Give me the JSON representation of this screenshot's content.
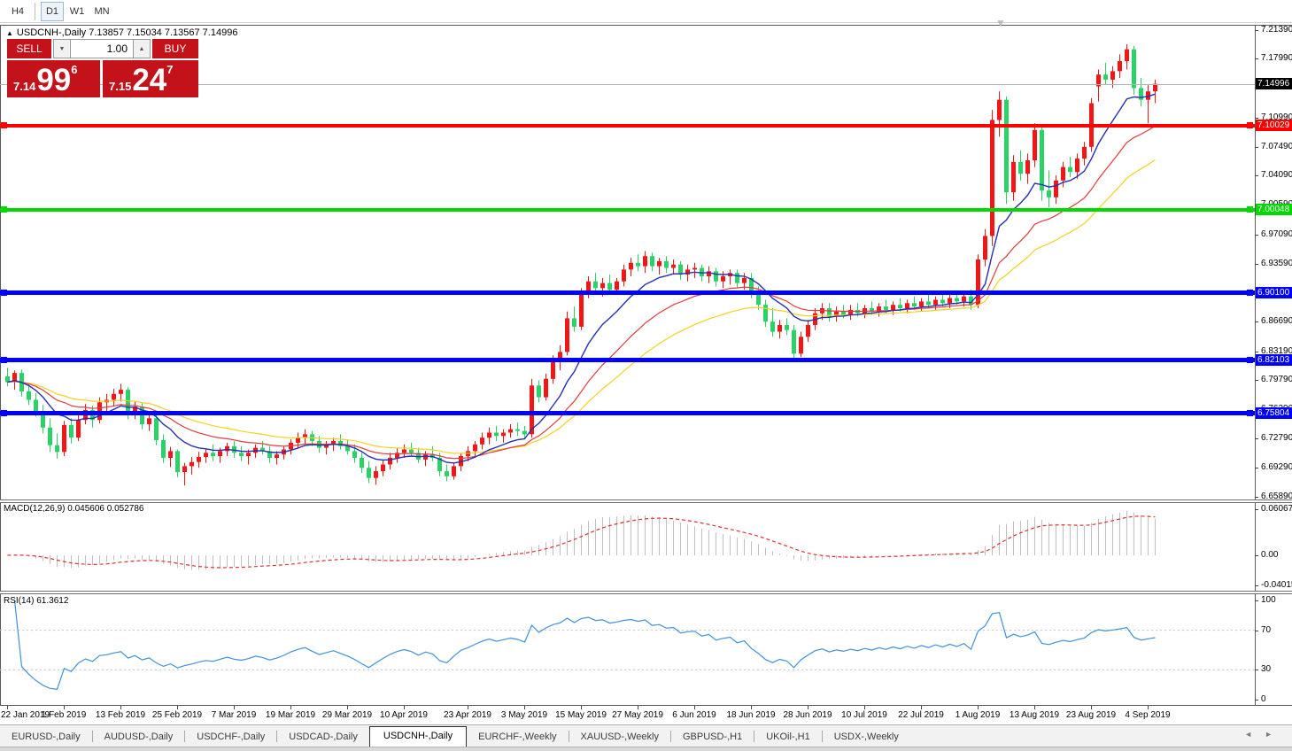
{
  "toolbar": {
    "timeframes": [
      {
        "label": "H4",
        "active": false
      },
      {
        "label": "D1",
        "active": true
      },
      {
        "label": "W1",
        "active": false
      },
      {
        "label": "MN",
        "active": false
      }
    ]
  },
  "chart": {
    "symbol_period": "USDCNH-,Daily",
    "ohlc_text": "7.13857 7.15034 7.13567 7.14996",
    "expand_marker": "▲",
    "scroll_marker": "▼"
  },
  "trade": {
    "sell_label": "SELL",
    "buy_label": "BUY",
    "volume": "1.00",
    "spin_down": "▼",
    "spin_up": "▲",
    "sell_price_small": "7.14",
    "sell_price_big": "99",
    "sell_price_sup": "6",
    "buy_price_small": "7.15",
    "buy_price_big": "24",
    "buy_price_sup": "7"
  },
  "price_axis": {
    "ticks": [
      "7.21390",
      "7.17990",
      "7.14490",
      "7.10990",
      "7.07490",
      "7.04090",
      "7.00590",
      "6.97090",
      "6.93590",
      "6.90090",
      "6.86690",
      "6.83190",
      "6.79790",
      "6.76290",
      "6.72790",
      "6.69290",
      "6.65890"
    ],
    "current_label": "7.14996"
  },
  "macd_panel": {
    "name": "MACD(12,26,9)",
    "v1": "0.045606",
    "v2": "0.052786",
    "axis": [
      {
        "label": "0.060674",
        "v": 0.060674
      },
      {
        "label": "0.00",
        "v": 0.0
      },
      {
        "label": "-0.040152",
        "v": -0.040152
      }
    ]
  },
  "rsi_panel": {
    "name": "RSI(14)",
    "value": "61.3612",
    "axis": [
      {
        "label": "100",
        "v": 100
      },
      {
        "label": "70",
        "v": 70
      },
      {
        "label": "30",
        "v": 30
      },
      {
        "label": "0",
        "v": 0
      }
    ],
    "levels": [
      70,
      30
    ]
  },
  "tabs": [
    {
      "label": "EURUSD-,Daily",
      "active": false
    },
    {
      "label": "AUDUSD-,Daily",
      "active": false
    },
    {
      "label": "USDCHF-,Daily",
      "active": false
    },
    {
      "label": "USDCAD-,Daily",
      "active": false
    },
    {
      "label": "USDCNH-,Daily",
      "active": true
    },
    {
      "label": "EURCHF-,Weekly",
      "active": false
    },
    {
      "label": "XAUUSD-,Weekly",
      "active": false
    },
    {
      "label": "GBPUSD-,H1",
      "active": false
    },
    {
      "label": "UKOil-,H1",
      "active": false
    },
    {
      "label": "USDX-,Weekly",
      "active": false
    }
  ],
  "tab_arrows": {
    "left": "◄",
    "right": "►"
  },
  "colors": {
    "bull": "#f21616",
    "bear": "#29d167",
    "ma_fast": "#2430b4",
    "ma_mid": "#e23a3a",
    "ma_slow": "#f2d21f",
    "level_red": "#ff0000",
    "level_green": "#00d800",
    "level_blue": "#0000ff",
    "current_price_bg": "#000000",
    "macd_bar": "#bfbfbf",
    "macd_signal": "#e03030",
    "rsi_line": "#4090dd",
    "trade_red": "#c31219"
  },
  "chart_data": {
    "type": "candlestick",
    "symbol": "USDCNH-",
    "timeframe": "Daily",
    "current_ohlc": {
      "open": 7.13857,
      "high": 7.15034,
      "low": 7.13567,
      "close": 7.14996
    },
    "y_axis": {
      "min": 6.6589,
      "max": 7.2139
    },
    "x_axis_dates": [
      {
        "index": 0,
        "label": "22 Jan 2019"
      },
      {
        "index": 8,
        "label": "1 Feb 2019"
      },
      {
        "index": 16,
        "label": "13 Feb 2019"
      },
      {
        "index": 24,
        "label": "25 Feb 2019"
      },
      {
        "index": 32,
        "label": "7 Mar 2019"
      },
      {
        "index": 40,
        "label": "19 Mar 2019"
      },
      {
        "index": 48,
        "label": "29 Mar 2019"
      },
      {
        "index": 56,
        "label": "10 Apr 2019"
      },
      {
        "index": 65,
        "label": "23 Apr 2019"
      },
      {
        "index": 73,
        "label": "3 May 2019"
      },
      {
        "index": 81,
        "label": "15 May 2019"
      },
      {
        "index": 89,
        "label": "27 May 2019"
      },
      {
        "index": 97,
        "label": "6 Jun 2019"
      },
      {
        "index": 105,
        "label": "18 Jun 2019"
      },
      {
        "index": 113,
        "label": "28 Jun 2019"
      },
      {
        "index": 121,
        "label": "10 Jul 2019"
      },
      {
        "index": 129,
        "label": "22 Jul 2019"
      },
      {
        "index": 137,
        "label": "1 Aug 2019"
      },
      {
        "index": 145,
        "label": "13 Aug 2019"
      },
      {
        "index": 153,
        "label": "23 Aug 2019"
      },
      {
        "index": 161,
        "label": "4 Sep 2019"
      }
    ],
    "levels": [
      {
        "price": 7.10029,
        "label": "7.10029",
        "color": "#ff0000"
      },
      {
        "price": 7.00048,
        "label": "7.00048",
        "color": "#00d800"
      },
      {
        "price": 6.901,
        "label": "6.90100",
        "color": "#0000ff"
      },
      {
        "price": 6.82103,
        "label": "6.82103",
        "color": "#0000ff"
      },
      {
        "price": 6.75804,
        "label": "6.75804",
        "color": "#0000ff"
      }
    ],
    "current_price": 7.14996,
    "overlays": [
      {
        "name": "ma-fast",
        "type": "ema",
        "period": 10,
        "color": "#2430b4"
      },
      {
        "name": "ma-mid",
        "type": "ema",
        "period": 21,
        "color": "#e23a3a"
      },
      {
        "name": "ma-slow",
        "type": "ema",
        "period": 34,
        "color": "#f2d21f"
      }
    ],
    "indicators": [
      {
        "name": "MACD",
        "params": "12,26,9",
        "values": [
          0.045606,
          0.052786
        ]
      },
      {
        "name": "RSI",
        "params": "14",
        "value": 61.3612,
        "levels": [
          70,
          30
        ]
      }
    ],
    "candles": [
      [
        6.802,
        6.812,
        6.79,
        6.795
      ],
      [
        6.795,
        6.809,
        6.786,
        6.806
      ],
      [
        6.806,
        6.81,
        6.778,
        6.784
      ],
      [
        6.784,
        6.794,
        6.768,
        6.774
      ],
      [
        6.774,
        6.782,
        6.754,
        6.76
      ],
      [
        6.76,
        6.768,
        6.734,
        6.741
      ],
      [
        6.741,
        6.752,
        6.712,
        6.72
      ],
      [
        6.72,
        6.734,
        6.704,
        6.712
      ],
      [
        6.712,
        6.749,
        6.707,
        6.744
      ],
      [
        6.744,
        6.752,
        6.722,
        6.729
      ],
      [
        6.729,
        6.756,
        6.725,
        6.75
      ],
      [
        6.75,
        6.769,
        6.745,
        6.762
      ],
      [
        6.762,
        6.767,
        6.741,
        6.75
      ],
      [
        6.75,
        6.777,
        6.746,
        6.771
      ],
      [
        6.771,
        6.781,
        6.759,
        6.774
      ],
      [
        6.774,
        6.787,
        6.766,
        6.781
      ],
      [
        6.781,
        6.793,
        6.772,
        6.786
      ],
      [
        6.786,
        6.789,
        6.751,
        6.757
      ],
      [
        6.757,
        6.772,
        6.751,
        6.766
      ],
      [
        6.766,
        6.77,
        6.739,
        6.745
      ],
      [
        6.745,
        6.758,
        6.737,
        6.752
      ],
      [
        6.752,
        6.756,
        6.72,
        6.726
      ],
      [
        6.726,
        6.733,
        6.699,
        6.705
      ],
      [
        6.705,
        6.718,
        6.694,
        6.713
      ],
      [
        6.713,
        6.715,
        6.682,
        6.688
      ],
      [
        6.688,
        6.699,
        6.672,
        6.695
      ],
      [
        6.695,
        6.706,
        6.685,
        6.7
      ],
      [
        6.7,
        6.712,
        6.693,
        6.706
      ],
      [
        6.706,
        6.716,
        6.699,
        6.711
      ],
      [
        6.711,
        6.721,
        6.701,
        6.707
      ],
      [
        6.707,
        6.717,
        6.699,
        6.713
      ],
      [
        6.713,
        6.723,
        6.707,
        6.719
      ],
      [
        6.719,
        6.725,
        6.705,
        6.711
      ],
      [
        6.711,
        6.719,
        6.701,
        6.707
      ],
      [
        6.707,
        6.715,
        6.697,
        6.711
      ],
      [
        6.711,
        6.721,
        6.705,
        6.717
      ],
      [
        6.717,
        6.725,
        6.709,
        6.713
      ],
      [
        6.713,
        6.719,
        6.699,
        6.705
      ],
      [
        6.705,
        6.713,
        6.697,
        6.709
      ],
      [
        6.709,
        6.719,
        6.703,
        6.715
      ],
      [
        6.715,
        6.727,
        6.709,
        6.723
      ],
      [
        6.723,
        6.735,
        6.717,
        6.729
      ],
      [
        6.729,
        6.739,
        6.721,
        6.733
      ],
      [
        6.733,
        6.737,
        6.719,
        6.725
      ],
      [
        6.725,
        6.731,
        6.711,
        6.717
      ],
      [
        6.717,
        6.725,
        6.709,
        6.721
      ],
      [
        6.721,
        6.729,
        6.713,
        6.725
      ],
      [
        6.725,
        6.733,
        6.715,
        6.719
      ],
      [
        6.719,
        6.727,
        6.709,
        6.713
      ],
      [
        6.713,
        6.721,
        6.699,
        6.705
      ],
      [
        6.705,
        6.711,
        6.687,
        6.693
      ],
      [
        6.693,
        6.701,
        6.675,
        6.681
      ],
      [
        6.681,
        6.695,
        6.673,
        6.689
      ],
      [
        6.689,
        6.703,
        6.683,
        6.697
      ],
      [
        6.697,
        6.711,
        6.691,
        6.705
      ],
      [
        6.705,
        6.717,
        6.699,
        6.711
      ],
      [
        6.711,
        6.721,
        6.705,
        6.715
      ],
      [
        6.715,
        6.723,
        6.707,
        6.711
      ],
      [
        6.711,
        6.717,
        6.699,
        6.703
      ],
      [
        6.703,
        6.713,
        6.695,
        6.709
      ],
      [
        6.709,
        6.719,
        6.701,
        6.705
      ],
      [
        6.705,
        6.711,
        6.683,
        6.689
      ],
      [
        6.689,
        6.697,
        6.677,
        6.683
      ],
      [
        6.683,
        6.699,
        6.679,
        6.695
      ],
      [
        6.695,
        6.711,
        6.689,
        6.707
      ],
      [
        6.707,
        6.719,
        6.701,
        6.713
      ],
      [
        6.713,
        6.725,
        6.707,
        6.721
      ],
      [
        6.721,
        6.735,
        6.715,
        6.729
      ],
      [
        6.729,
        6.741,
        6.721,
        6.735
      ],
      [
        6.735,
        6.743,
        6.725,
        6.731
      ],
      [
        6.731,
        6.739,
        6.723,
        6.735
      ],
      [
        6.735,
        6.745,
        6.729,
        6.739
      ],
      [
        6.739,
        6.747,
        6.731,
        6.737
      ],
      [
        6.737,
        6.743,
        6.727,
        6.733
      ],
      [
        6.733,
        6.799,
        6.729,
        6.791
      ],
      [
        6.791,
        6.797,
        6.771,
        6.777
      ],
      [
        6.777,
        6.805,
        6.773,
        6.799
      ],
      [
        6.799,
        6.827,
        6.793,
        6.819
      ],
      [
        6.819,
        6.839,
        6.809,
        6.831
      ],
      [
        6.831,
        6.879,
        6.827,
        6.871
      ],
      [
        6.871,
        6.885,
        6.855,
        6.861
      ],
      [
        6.861,
        6.907,
        6.857,
        6.901
      ],
      [
        6.901,
        6.921,
        6.895,
        6.915
      ],
      [
        6.915,
        6.925,
        6.901,
        6.907
      ],
      [
        6.907,
        6.919,
        6.897,
        6.913
      ],
      [
        6.913,
        6.923,
        6.899,
        6.905
      ],
      [
        6.905,
        6.919,
        6.899,
        6.915
      ],
      [
        6.915,
        6.935,
        6.909,
        6.929
      ],
      [
        6.929,
        6.943,
        6.921,
        6.937
      ],
      [
        6.937,
        6.947,
        6.927,
        6.933
      ],
      [
        6.933,
        6.951,
        6.925,
        6.945
      ],
      [
        6.945,
        6.949,
        6.927,
        6.933
      ],
      [
        6.933,
        6.943,
        6.923,
        6.939
      ],
      [
        6.939,
        6.945,
        6.925,
        6.931
      ],
      [
        6.931,
        6.941,
        6.923,
        6.935
      ],
      [
        6.935,
        6.939,
        6.917,
        6.923
      ],
      [
        6.923,
        6.935,
        6.915,
        6.929
      ],
      [
        6.929,
        6.937,
        6.919,
        6.931
      ],
      [
        6.931,
        6.935,
        6.915,
        6.921
      ],
      [
        6.921,
        6.933,
        6.913,
        6.927
      ],
      [
        6.927,
        6.931,
        6.909,
        6.915
      ],
      [
        6.915,
        6.927,
        6.907,
        6.921
      ],
      [
        6.921,
        6.929,
        6.911,
        6.925
      ],
      [
        6.925,
        6.929,
        6.907,
        6.913
      ],
      [
        6.913,
        6.925,
        6.905,
        6.919
      ],
      [
        6.919,
        6.925,
        6.895,
        6.901
      ],
      [
        6.901,
        6.909,
        6.881,
        6.887
      ],
      [
        6.887,
        6.893,
        6.861,
        6.867
      ],
      [
        6.867,
        6.883,
        6.849,
        6.855
      ],
      [
        6.855,
        6.869,
        6.847,
        6.863
      ],
      [
        6.863,
        6.871,
        6.851,
        6.857
      ],
      [
        6.857,
        6.863,
        6.823,
        6.829
      ],
      [
        6.829,
        6.855,
        6.825,
        6.849
      ],
      [
        6.849,
        6.869,
        6.843,
        6.863
      ],
      [
        6.863,
        6.883,
        6.857,
        6.877
      ],
      [
        6.877,
        6.889,
        6.869,
        6.883
      ],
      [
        6.883,
        6.889,
        6.867,
        6.873
      ],
      [
        6.873,
        6.885,
        6.867,
        6.879
      ],
      [
        6.879,
        6.887,
        6.871,
        6.875
      ],
      [
        6.875,
        6.887,
        6.869,
        6.881
      ],
      [
        6.881,
        6.889,
        6.873,
        6.877
      ],
      [
        6.877,
        6.887,
        6.871,
        6.883
      ],
      [
        6.883,
        6.891,
        6.875,
        6.879
      ],
      [
        6.879,
        6.889,
        6.873,
        6.885
      ],
      [
        6.885,
        6.893,
        6.877,
        6.881
      ],
      [
        6.881,
        6.891,
        6.875,
        6.887
      ],
      [
        6.887,
        6.895,
        6.879,
        6.883
      ],
      [
        6.883,
        6.893,
        6.877,
        6.889
      ],
      [
        6.889,
        6.897,
        6.881,
        6.885
      ],
      [
        6.885,
        6.895,
        6.879,
        6.891
      ],
      [
        6.891,
        6.899,
        6.883,
        6.887
      ],
      [
        6.887,
        6.897,
        6.881,
        6.893
      ],
      [
        6.893,
        6.901,
        6.885,
        6.889
      ],
      [
        6.889,
        6.899,
        6.883,
        6.895
      ],
      [
        6.895,
        6.903,
        6.887,
        6.891
      ],
      [
        6.891,
        6.901,
        6.885,
        6.897
      ],
      [
        6.897,
        6.905,
        6.881,
        6.887
      ],
      [
        6.887,
        6.947,
        6.883,
        6.941
      ],
      [
        6.941,
        6.977,
        6.933,
        6.969
      ],
      [
        6.969,
        7.119,
        6.957,
        7.107
      ],
      [
        7.107,
        7.141,
        7.087,
        7.131
      ],
      [
        7.131,
        7.135,
        7.007,
        7.021
      ],
      [
        7.021,
        7.065,
        7.011,
        7.057
      ],
      [
        7.057,
        7.071,
        7.035,
        7.043
      ],
      [
        7.043,
        7.067,
        7.031,
        7.059
      ],
      [
        7.059,
        7.103,
        7.051,
        7.095
      ],
      [
        7.095,
        7.101,
        7.011,
        7.023
      ],
      [
        7.023,
        7.047,
        7.003,
        7.015
      ],
      [
        7.015,
        7.041,
        7.007,
        7.035
      ],
      [
        7.035,
        7.057,
        7.027,
        7.051
      ],
      [
        7.051,
        7.063,
        7.039,
        7.045
      ],
      [
        7.045,
        7.067,
        7.037,
        7.061
      ],
      [
        7.061,
        7.081,
        7.053,
        7.075
      ],
      [
        7.075,
        7.133,
        7.069,
        7.127
      ],
      [
        7.147,
        7.167,
        7.129,
        7.161
      ],
      [
        7.161,
        7.175,
        7.149,
        7.155
      ],
      [
        7.155,
        7.171,
        7.145,
        7.165
      ],
      [
        7.165,
        7.185,
        7.157,
        7.177
      ],
      [
        7.177,
        7.197,
        7.167,
        7.191
      ],
      [
        7.191,
        7.195,
        7.137,
        7.145
      ],
      [
        7.145,
        7.157,
        7.123,
        7.131
      ],
      [
        7.131,
        7.149,
        7.103,
        7.141
      ],
      [
        7.141,
        7.155,
        7.127,
        7.15
      ]
    ]
  }
}
